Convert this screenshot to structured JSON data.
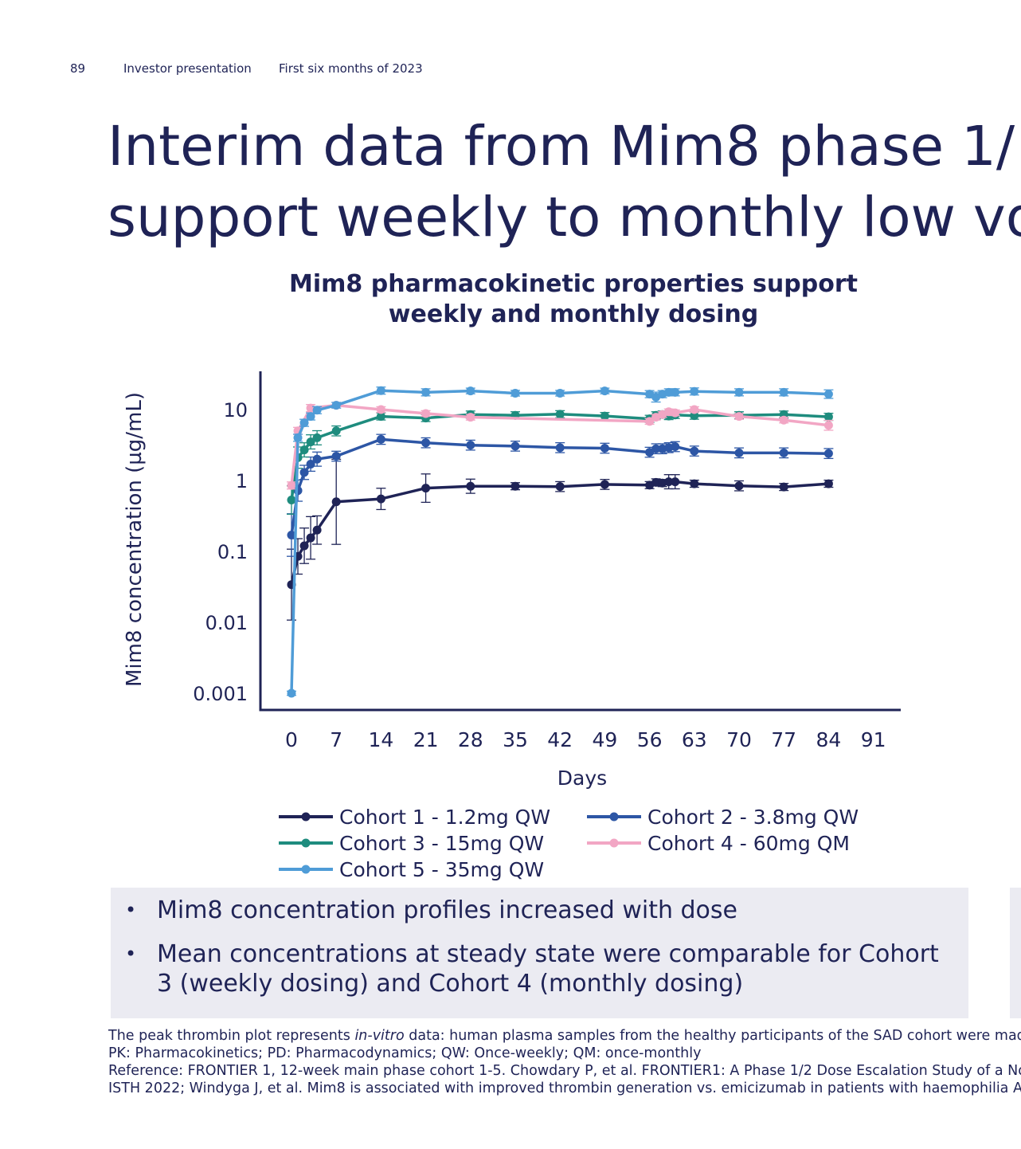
{
  "header": {
    "page_number": "89",
    "doc_title": "Investor presentation",
    "period": "First six months of 2023"
  },
  "title": {
    "line1": "Interim data from Mim8 phase 1/",
    "line2": "support weekly to monthly low vo"
  },
  "chart_title": {
    "line1": "Mim8 pharmacokinetic properties support",
    "line2": "weekly and monthly dosing"
  },
  "chart_data": {
    "type": "line",
    "title": "Mim8 pharmacokinetic properties support weekly and monthly dosing",
    "xlabel": "Days",
    "ylabel": "Mim8 concentration (µg/mL)",
    "x_ticks": [
      0,
      7,
      14,
      21,
      28,
      35,
      42,
      49,
      56,
      63,
      70,
      77,
      84,
      91
    ],
    "y_ticks": [
      0.001,
      0.01,
      0.1,
      1,
      10
    ],
    "y_tick_labels": [
      "0.001",
      "0.01",
      "0.1",
      "1",
      "10"
    ],
    "y_scale": "log",
    "xlim": [
      -2,
      96
    ],
    "ylim": [
      0.0006,
      35
    ],
    "legend_position": "bottom",
    "series": [
      {
        "name": "Cohort 1 - 1.2mg QW",
        "color": "#1f2356",
        "x": [
          0,
          1,
          2,
          3,
          4,
          7,
          14,
          21,
          28,
          35,
          42,
          49,
          56,
          57,
          58,
          59,
          60,
          63,
          70,
          77,
          84
        ],
        "y": [
          0.034,
          0.085,
          0.12,
          0.155,
          0.2,
          0.5,
          0.55,
          0.78,
          0.83,
          0.83,
          0.82,
          0.88,
          0.86,
          0.94,
          0.92,
          0.96,
          0.96,
          0.9,
          0.84,
          0.81,
          0.9
        ],
        "err": [
          0.5,
          0.25,
          0.25,
          0.3,
          0.2,
          0.6,
          0.15,
          0.2,
          0.1,
          0.05,
          0.07,
          0.07,
          0.05,
          0.05,
          0.05,
          0.1,
          0.1,
          0.05,
          0.07,
          0.05,
          0.05
        ]
      },
      {
        "name": "Cohort 2 - 3.8mg QW",
        "color": "#2d56a5",
        "x": [
          0,
          1,
          2,
          3,
          4,
          7,
          14,
          21,
          28,
          35,
          42,
          49,
          56,
          57,
          58,
          59,
          60,
          63,
          70,
          77,
          84
        ],
        "y": [
          0.17,
          0.72,
          1.3,
          1.7,
          2.0,
          2.2,
          3.8,
          3.4,
          3.15,
          3.05,
          2.9,
          2.85,
          2.5,
          2.8,
          2.8,
          2.9,
          3.0,
          2.6,
          2.45,
          2.45,
          2.4
        ],
        "err": [
          0.3,
          0.15,
          0.1,
          0.1,
          0.1,
          0.07,
          0.07,
          0.07,
          0.07,
          0.07,
          0.07,
          0.07,
          0.07,
          0.07,
          0.07,
          0.07,
          0.07,
          0.07,
          0.07,
          0.07,
          0.07
        ]
      },
      {
        "name": "Cohort 3 - 15mg QW",
        "color": "#1e8c7e",
        "x": [
          0,
          1,
          2,
          3,
          4,
          7,
          14,
          21,
          28,
          35,
          42,
          49,
          56,
          57,
          58,
          59,
          60,
          63,
          70,
          77,
          84
        ],
        "y": [
          0.53,
          2.1,
          2.7,
          3.5,
          4.0,
          5.0,
          8.0,
          7.6,
          8.5,
          8.3,
          8.6,
          8.1,
          7.4,
          8.3,
          8.5,
          8.1,
          8.4,
          8.2,
          8.3,
          8.5,
          7.9
        ],
        "err": [
          0.2,
          0.15,
          0.1,
          0.1,
          0.1,
          0.07,
          0.05,
          0.05,
          0.05,
          0.05,
          0.05,
          0.05,
          0.05,
          0.05,
          0.05,
          0.05,
          0.05,
          0.05,
          0.05,
          0.05,
          0.05
        ]
      },
      {
        "name": "Cohort 4 - 60mg QM",
        "color": "#f2a6c4",
        "x": [
          0,
          1,
          3,
          7,
          14,
          21,
          28,
          56,
          57,
          58,
          59,
          60,
          63,
          70,
          77,
          84
        ],
        "y": [
          0.85,
          5.0,
          10.5,
          11.5,
          10.0,
          8.8,
          7.8,
          6.8,
          7.8,
          8.5,
          9.3,
          9.0,
          10.0,
          8.0,
          7.1,
          6.0
        ],
        "err": [
          0.05,
          0.05,
          0.05,
          0.04,
          0.04,
          0.04,
          0.04,
          0.04,
          0.04,
          0.04,
          0.04,
          0.04,
          0.04,
          0.04,
          0.04,
          0.07
        ]
      },
      {
        "name": "Cohort 5 - 35mg QW",
        "color": "#4f9cd7",
        "x": [
          0,
          1,
          2,
          3,
          4,
          7,
          14,
          21,
          28,
          35,
          42,
          49,
          56,
          57,
          58,
          59,
          60,
          63,
          70,
          77,
          84
        ],
        "y": [
          0.001,
          4.0,
          6.5,
          8.0,
          9.8,
          11.5,
          18.5,
          17.5,
          18.3,
          17.0,
          17.0,
          18.3,
          16.5,
          15.0,
          16.5,
          17.5,
          17.5,
          18.0,
          17.5,
          17.5,
          16.5
        ],
        "err": [
          0.03,
          0.05,
          0.05,
          0.05,
          0.05,
          0.04,
          0.05,
          0.05,
          0.04,
          0.04,
          0.04,
          0.04,
          0.05,
          0.07,
          0.05,
          0.05,
          0.05,
          0.05,
          0.05,
          0.05,
          0.06
        ]
      }
    ]
  },
  "bullets": [
    "Mim8 concentration profiles increased with dose",
    "Mean concentrations at steady state were comparable for Cohort 3 (weekly dosing) and Cohort 4 (monthly dosing)"
  ],
  "bullet_symbol": "•",
  "footnotes": {
    "line1_pre": "The peak thrombin plot represents ",
    "line1_italic": "in-vitro",
    "line1_post": " data: human plasma samples from the healthy participants of the SAD cohort were mad",
    "line2": "PK: Pharmacokinetics; PD: Pharmacodynamics; QW: Once-weekly; QM: once-monthly",
    "line3": "Reference: FRONTIER 1, 12-week main phase cohort 1-5. Chowdary P, et al. FRONTIER1: A Phase 1/2 Dose Escalation Study of a Nov",
    "line4": "ISTH 2022; Windyga J, et al. Mim8 is associated with improved thrombin generation vs. emicizumab in patients with haemophilia A,"
  }
}
